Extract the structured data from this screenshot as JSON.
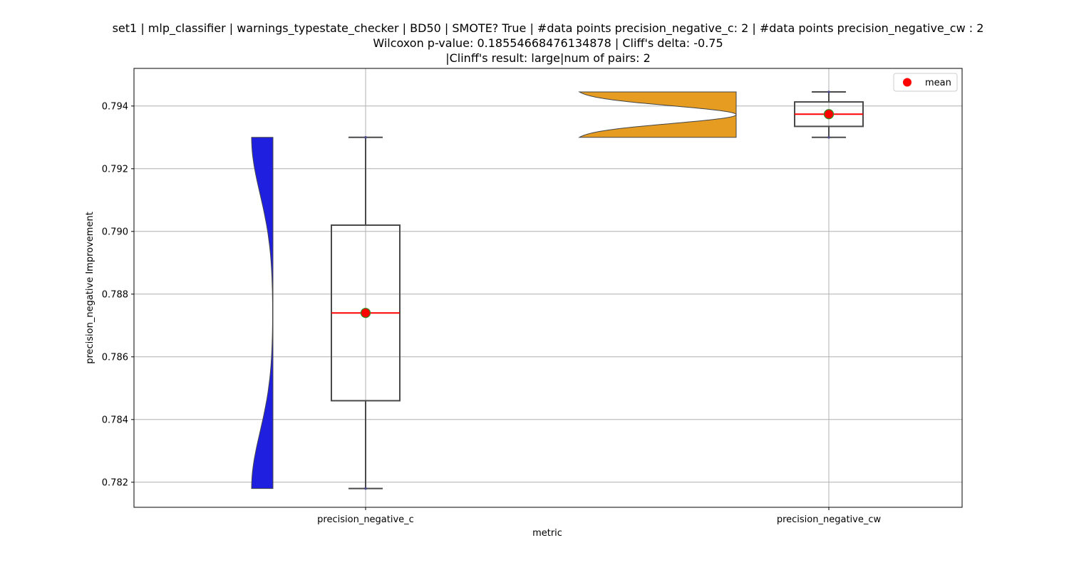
{
  "title": {
    "line1": "set1 | mlp_classifier | warnings_typestate_checker | BD50 | SMOTE? True | #data points precision_negative_c: 2 | #data points precision_negative_cw : 2",
    "line2": "Wilcoxon p-value: 0.18554668476134878 | Cliff's delta: -0.75",
    "line3": "|Clinff's result: large|num of pairs: 2"
  },
  "chart_data": {
    "type": "violin+box",
    "xlabel": "metric",
    "ylabel": "precision_negative Improvement",
    "categories": [
      "precision_negative_c",
      "precision_negative_cw"
    ],
    "ylim": [
      0.7812,
      0.7952
    ],
    "yticks": [
      0.782,
      0.784,
      0.786,
      0.788,
      0.79,
      0.792,
      0.794
    ],
    "ytick_labels": [
      "0.782",
      "0.784",
      "0.786",
      "0.788",
      "0.790",
      "0.792",
      "0.794"
    ],
    "grid": true,
    "legend": {
      "position": "top-right",
      "entries": [
        "mean"
      ]
    },
    "series": [
      {
        "category": "precision_negative_c",
        "violin_color": "#1f1fe0",
        "violin_side": "left",
        "box": {
          "whisker_low": 0.7818,
          "q1": 0.7846,
          "median": 0.7874,
          "q3": 0.7902,
          "whisker_high": 0.793
        },
        "mean": 0.7874,
        "points": [
          0.7818,
          0.793
        ]
      },
      {
        "category": "precision_negative_cw",
        "violin_color": "#e59c20",
        "violin_side": "left",
        "box": {
          "whisker_low": 0.793,
          "q1": 0.79335,
          "median": 0.79374,
          "q3": 0.79413,
          "whisker_high": 0.79445
        },
        "mean": 0.79374,
        "points": [
          0.793,
          0.79445
        ]
      }
    ],
    "colors": {
      "mean_marker": "#ff0000",
      "mean_marker_edge": "#2e8b22",
      "median_line": "#ff0000",
      "box_edge": "#4a4a4a",
      "grid": "#b0b0b0"
    }
  }
}
